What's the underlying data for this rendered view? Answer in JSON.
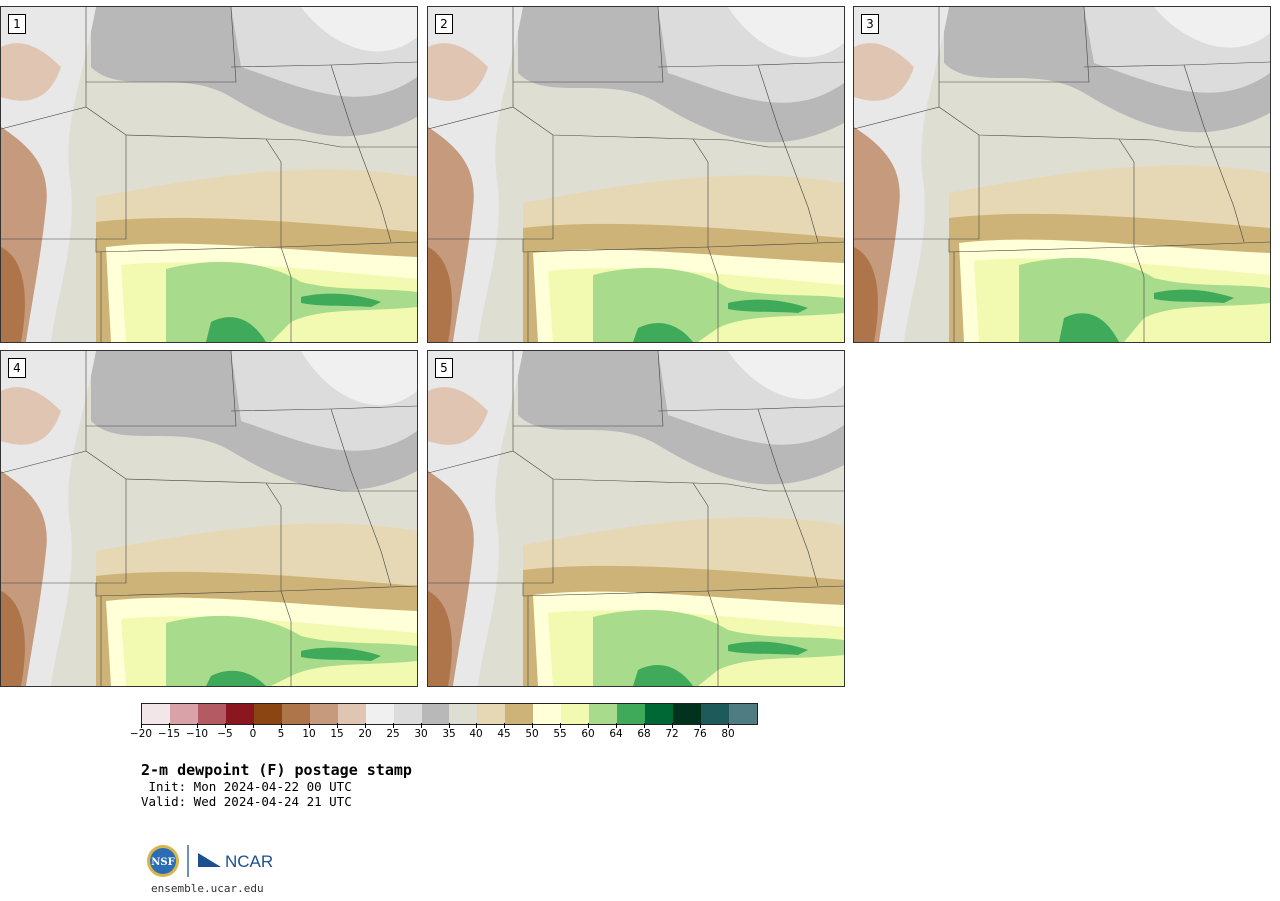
{
  "panels": [
    {
      "label": "1"
    },
    {
      "label": "2"
    },
    {
      "label": "3"
    },
    {
      "label": "4"
    },
    {
      "label": "5"
    }
  ],
  "colorbar": {
    "colors": [
      "#f3e6e8",
      "#d8a2a8",
      "#b35a63",
      "#8a1620",
      "#8b4513",
      "#ad7549",
      "#c59a7d",
      "#e0c5b3",
      "#f0f0f0",
      "#dcdcdc",
      "#b8b8b8",
      "#deded2",
      "#e6d8b4",
      "#cdb378",
      "#ffffd8",
      "#f2f9b0",
      "#a8dc8c",
      "#3fab5a",
      "#006834",
      "#00321e",
      "#1e5a5a",
      "#4e7c82"
    ],
    "tick_labels": [
      "−20",
      "−15",
      "−10",
      "−5",
      "0",
      "5",
      "10",
      "15",
      "20",
      "25",
      "30",
      "35",
      "40",
      "45",
      "50",
      "55",
      "60",
      "64",
      "68",
      "72",
      "76",
      "80"
    ]
  },
  "title": "2-m dewpoint (F) postage stamp",
  "init": " Init: Mon 2024-04-22 00 UTC",
  "valid": "Valid: Wed 2024-04-24 21 UTC",
  "logo": {
    "left": "NSF",
    "right": "NCAR"
  },
  "url": "ensemble.ucar.edu"
}
